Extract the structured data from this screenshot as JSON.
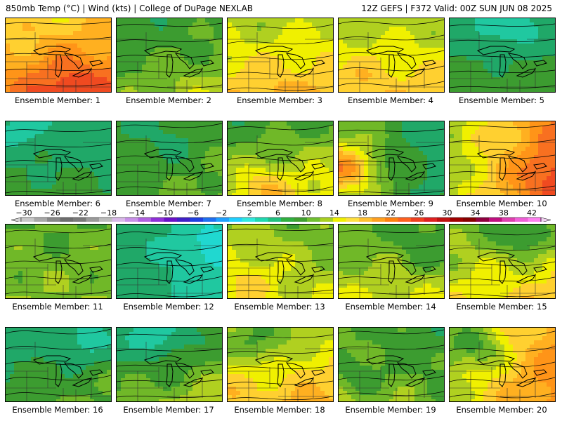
{
  "header": {
    "left": "850mb Temp (°C) | Wind (kts) | College of DuPage NEXLAB",
    "right": "12Z GEFS | F372 Valid: 00Z SUN JUN 08 2025"
  },
  "colorbar": {
    "unit": "°C",
    "labels": [
      "-30",
      "-26",
      "-22",
      "-18",
      "-14",
      "-10",
      "-6",
      "-2",
      "2",
      "6",
      "10",
      "14",
      "18",
      "22",
      "26",
      "30",
      "34",
      "38",
      "42"
    ],
    "colors": [
      "#c8c8c8",
      "#a8a8a8",
      "#888888",
      "#6e6e6e",
      "#7a7a7a",
      "#9a9a9a",
      "#bcbcbc",
      "#d8b8e8",
      "#c890e8",
      "#b060e0",
      "#9030d8",
      "#6a10c8",
      "#4020c8",
      "#2040e0",
      "#2070f0",
      "#20a0ff",
      "#20d0ff",
      "#30e8e0",
      "#20d8b0",
      "#20c080",
      "#30b040",
      "#40a030",
      "#70c030",
      "#a8d020",
      "#f0f000",
      "#ffe040",
      "#ffc030",
      "#ffa020",
      "#ff8010",
      "#ff6020",
      "#f04020",
      "#e02020",
      "#c01010",
      "#a00000",
      "#880000",
      "#900040",
      "#c01080",
      "#e040b0",
      "#f060d8",
      "#ff80f0"
    ]
  },
  "legend": {
    "palette": {
      "-10": "#20d8c8",
      "-2": "#20d8c8",
      "2": "#20d8c8",
      "6": "#20b070",
      "10": "#40a030",
      "14": "#78c028",
      "18": "#e8e800",
      "22": "#ffc030",
      "26": "#ff8c20",
      "30": "#f05a20"
    }
  },
  "members": [
    {
      "caption": "Ensemble Member: 1",
      "base": 22,
      "gx": 0.02,
      "gy": -0.1,
      "hot": [
        0.55,
        0.85,
        3.5
      ]
    },
    {
      "caption": "Ensemble Member: 2",
      "base": 12,
      "gx": 0.02,
      "gy": -0.06,
      "hot": [
        0.6,
        0.95,
        1.0
      ]
    },
    {
      "caption": "Ensemble Member: 3",
      "base": 18,
      "gx": 0.01,
      "gy": -0.08,
      "hot": [
        0.4,
        0.9,
        1.0
      ]
    },
    {
      "caption": "Ensemble Member: 4",
      "base": 18,
      "gx": 0.0,
      "gy": -0.08,
      "hot": [
        0.3,
        0.7,
        1.0
      ]
    },
    {
      "caption": "Ensemble Member: 5",
      "base": 10,
      "gx": 0.0,
      "gy": -0.09,
      "hot": [
        0.5,
        0.1,
        -5.0
      ]
    },
    {
      "caption": "Ensemble Member: 6",
      "base": 10,
      "gx": -0.01,
      "gy": -0.06,
      "hot": [
        0.1,
        0.1,
        -4.0
      ]
    },
    {
      "caption": "Ensemble Member: 7",
      "base": 11,
      "gx": 0.02,
      "gy": -0.04,
      "hot": [
        0.5,
        0.3,
        -2.0
      ]
    },
    {
      "caption": "Ensemble Member: 8",
      "base": 14,
      "gx": 0.02,
      "gy": -0.1,
      "hot": [
        0.3,
        0.85,
        4.0
      ]
    },
    {
      "caption": "Ensemble Member: 9",
      "base": 16,
      "gx": -0.08,
      "gy": -0.02,
      "hot": [
        0.05,
        0.6,
        8.0
      ]
    },
    {
      "caption": "Ensemble Member: 10",
      "base": 16,
      "gx": 0.1,
      "gy": -0.02,
      "hot": [
        0.9,
        0.7,
        3.0
      ]
    },
    {
      "caption": "Ensemble Member: 11",
      "base": 14,
      "gx": 0.0,
      "gy": -0.03,
      "hot": [
        0.5,
        0.5,
        0.0
      ]
    },
    {
      "caption": "Ensemble Member: 12",
      "base": 8,
      "gx": -0.04,
      "gy": 0.0,
      "hot": [
        0.95,
        0.25,
        -6.0
      ]
    },
    {
      "caption": "Ensemble Member: 13",
      "base": 17,
      "gx": -0.02,
      "gy": -0.05,
      "hot": [
        0.2,
        0.7,
        2.0
      ]
    },
    {
      "caption": "Ensemble Member: 14",
      "base": 15,
      "gx": 0.0,
      "gy": -0.07,
      "hot": [
        0.85,
        0.3,
        -3.0
      ]
    },
    {
      "caption": "Ensemble Member: 15",
      "base": 16,
      "gx": 0.02,
      "gy": -0.08,
      "hot": [
        0.7,
        0.15,
        -5.0
      ]
    },
    {
      "caption": "Ensemble Member: 16",
      "base": 10,
      "gx": 0.02,
      "gy": -0.06,
      "hot": [
        0.75,
        0.15,
        -6.0
      ]
    },
    {
      "caption": "Ensemble Member: 17",
      "base": 11,
      "gx": 0.03,
      "gy": -0.09,
      "hot": [
        0.35,
        0.1,
        -6.0
      ]
    },
    {
      "caption": "Ensemble Member: 18",
      "base": 18,
      "gx": 0.01,
      "gy": -0.09,
      "hot": [
        0.3,
        0.2,
        -4.0
      ]
    },
    {
      "caption": "Ensemble Member: 19",
      "base": 15,
      "gx": -0.03,
      "gy": -0.05,
      "hot": [
        0.15,
        0.6,
        -3.0
      ]
    },
    {
      "caption": "Ensemble Member: 20",
      "base": 16,
      "gx": 0.08,
      "gy": -0.03,
      "hot": [
        0.25,
        0.25,
        -5.0
      ]
    }
  ]
}
